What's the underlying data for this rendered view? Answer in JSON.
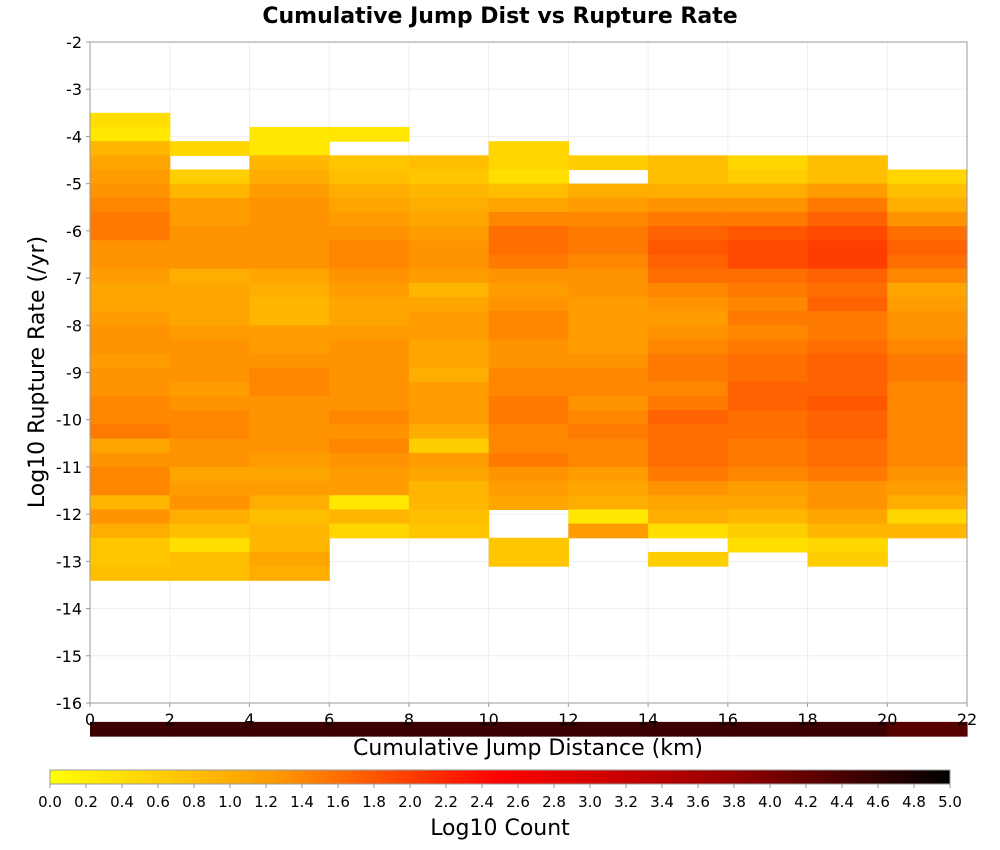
{
  "chart_data": {
    "type": "heatmap",
    "title": "Cumulative Jump Dist vs Rupture Rate",
    "xlabel": "Cumulative Jump Distance (km)",
    "ylabel": "Log10 Rupture Rate (/yr)",
    "colorbar_label": "Log10 Count",
    "xlim": [
      0,
      22
    ],
    "ylim": [
      -16,
      -2
    ],
    "x_ticks": [
      "0",
      "2",
      "4",
      "6",
      "8",
      "10",
      "12",
      "14",
      "16",
      "18",
      "20",
      "22"
    ],
    "y_ticks": [
      "-2",
      "-3",
      "-4",
      "-5",
      "-6",
      "-7",
      "-8",
      "-9",
      "-10",
      "-11",
      "-12",
      "-13",
      "-14",
      "-15",
      "-16"
    ],
    "colorbar_ticks": [
      "0.0",
      "0.2",
      "0.4",
      "0.6",
      "0.8",
      "1.0",
      "1.2",
      "1.4",
      "1.6",
      "1.8",
      "2.0",
      "2.2",
      "2.4",
      "2.6",
      "2.8",
      "3.0",
      "3.2",
      "3.4",
      "3.6",
      "3.8",
      "4.0",
      "4.2",
      "4.4",
      "4.6",
      "4.8",
      "5.0"
    ],
    "colorbar_range": [
      0,
      5
    ],
    "colormap": [
      "#ffff00",
      "#ff9900",
      "#ff0000",
      "#990000",
      "#000000"
    ],
    "grid": true,
    "x_bin_width": 2,
    "y_bin_height": 0.3,
    "y_bins_top": -3.5,
    "columns": [
      {
        "x": 0,
        "values": [
          0.4,
          0.3,
          0.9,
          1.1,
          1.2,
          1.3,
          1.4,
          1.5,
          1.5,
          1.3,
          1.3,
          1.2,
          1.1,
          1.1,
          1.2,
          1.3,
          1.3,
          1.2,
          1.3,
          1.3,
          1.4,
          1.4,
          1.5,
          1.1,
          1.3,
          1.4,
          1.4,
          0.9,
          1.3,
          1.0,
          0.7,
          0.7,
          0.8,
          null,
          null,
          null,
          null,
          null,
          null,
          null,
          null,
          null,
          null,
          4.5
        ]
      },
      {
        "x": 2,
        "values": [
          null,
          null,
          0.5,
          null,
          0.6,
          0.9,
          1.2,
          1.2,
          1.3,
          1.3,
          1.3,
          1.0,
          1.1,
          1.1,
          1.1,
          1.2,
          1.3,
          1.3,
          1.3,
          1.2,
          1.3,
          1.4,
          1.4,
          1.3,
          1.3,
          1.1,
          1.2,
          1.3,
          1.0,
          0.8,
          0.4,
          0.8,
          0.8,
          null,
          null,
          null,
          null,
          null,
          null,
          null,
          null,
          null,
          null,
          4.5
        ]
      },
      {
        "x": 4,
        "values": [
          null,
          0.3,
          0.3,
          0.9,
          1.0,
          1.2,
          1.3,
          1.3,
          1.3,
          1.3,
          1.3,
          1.1,
          1.0,
          0.9,
          0.9,
          1.2,
          1.2,
          1.3,
          1.4,
          1.4,
          1.3,
          1.3,
          1.3,
          1.3,
          1.2,
          1.1,
          1.2,
          1.0,
          0.8,
          0.9,
          0.9,
          1.1,
          1.0,
          null,
          null,
          null,
          null,
          null,
          null,
          null,
          null,
          null,
          null,
          4.5
        ]
      },
      {
        "x": 6,
        "values": [
          null,
          0.3,
          null,
          0.7,
          0.8,
          1.0,
          1.1,
          1.2,
          1.3,
          1.4,
          1.4,
          1.3,
          1.2,
          1.1,
          1.1,
          1.2,
          1.3,
          1.3,
          1.3,
          1.3,
          1.3,
          1.4,
          1.3,
          1.4,
          1.3,
          1.2,
          1.2,
          0.3,
          0.9,
          0.5,
          null,
          null,
          null,
          null,
          null,
          null,
          null,
          null,
          null,
          null,
          null,
          null,
          null,
          4.5
        ]
      },
      {
        "x": 8,
        "values": [
          null,
          null,
          null,
          0.8,
          0.7,
          0.9,
          1.0,
          1.1,
          1.2,
          1.3,
          1.3,
          1.2,
          0.9,
          1.1,
          1.2,
          1.2,
          1.1,
          1.1,
          1.0,
          1.2,
          1.2,
          1.2,
          1.0,
          0.6,
          1.2,
          1.1,
          0.9,
          0.9,
          0.8,
          0.7,
          null,
          null,
          null,
          null,
          null,
          null,
          null,
          null,
          null,
          null,
          null,
          null,
          null,
          4.5
        ]
      },
      {
        "x": 10,
        "values": [
          null,
          null,
          0.5,
          0.5,
          0.4,
          0.8,
          1.1,
          1.4,
          1.6,
          1.6,
          1.5,
          1.3,
          1.2,
          1.3,
          1.4,
          1.4,
          1.3,
          1.3,
          1.4,
          1.4,
          1.5,
          1.5,
          1.4,
          1.4,
          1.5,
          1.3,
          1.2,
          1.1,
          null,
          null,
          0.7,
          0.7,
          null,
          null,
          null,
          null,
          null,
          null,
          null,
          null,
          null,
          null,
          null,
          4.5
        ]
      },
      {
        "x": 12,
        "values": [
          null,
          null,
          null,
          0.6,
          null,
          1.0,
          1.2,
          1.4,
          1.5,
          1.5,
          1.4,
          1.3,
          1.3,
          1.2,
          1.2,
          1.2,
          1.2,
          1.3,
          1.4,
          1.4,
          1.3,
          1.4,
          1.5,
          1.4,
          1.4,
          1.2,
          1.1,
          1.0,
          0.3,
          1.2,
          null,
          null,
          null,
          null,
          null,
          null,
          null,
          null,
          null,
          null,
          null,
          null,
          null,
          4.5
        ]
      },
      {
        "x": 14,
        "values": [
          null,
          null,
          null,
          0.8,
          0.8,
          1.0,
          1.3,
          1.5,
          1.7,
          1.8,
          1.7,
          1.6,
          1.4,
          1.3,
          1.2,
          1.3,
          1.4,
          1.5,
          1.5,
          1.4,
          1.5,
          1.7,
          1.6,
          1.6,
          1.6,
          1.5,
          1.3,
          1.1,
          1.0,
          0.4,
          null,
          0.6,
          null,
          null,
          null,
          null,
          null,
          null,
          null,
          null,
          null,
          null,
          null,
          4.5
        ]
      },
      {
        "x": 16,
        "values": [
          null,
          null,
          null,
          0.5,
          0.6,
          1.0,
          1.3,
          1.5,
          1.8,
          1.9,
          1.9,
          1.6,
          1.5,
          1.4,
          1.5,
          1.4,
          1.5,
          1.6,
          1.6,
          1.7,
          1.7,
          1.6,
          1.6,
          1.5,
          1.5,
          1.4,
          1.2,
          1.1,
          0.9,
          0.6,
          0.4,
          null,
          null,
          null,
          null,
          null,
          null,
          null,
          null,
          null,
          null,
          null,
          null,
          4.5
        ]
      },
      {
        "x": 18,
        "values": [
          null,
          null,
          null,
          0.8,
          0.8,
          1.2,
          1.5,
          1.7,
          1.9,
          2.0,
          2.0,
          1.7,
          1.6,
          1.7,
          1.5,
          1.5,
          1.6,
          1.7,
          1.7,
          1.7,
          1.8,
          1.7,
          1.7,
          1.6,
          1.6,
          1.5,
          1.3,
          1.3,
          1.1,
          0.9,
          0.5,
          0.6,
          null,
          null,
          null,
          null,
          null,
          null,
          null,
          null,
          null,
          null,
          null,
          4.5
        ]
      },
      {
        "x": 20,
        "values": [
          null,
          null,
          null,
          null,
          0.5,
          0.8,
          1.0,
          1.3,
          1.6,
          1.7,
          1.6,
          1.4,
          1.1,
          1.2,
          1.3,
          1.3,
          1.4,
          1.5,
          1.5,
          1.4,
          1.4,
          1.4,
          1.4,
          1.4,
          1.4,
          1.3,
          1.2,
          1.0,
          0.5,
          0.9,
          null,
          null,
          null,
          null,
          null,
          null,
          null,
          null,
          null,
          null,
          null,
          null,
          null,
          4.3
        ]
      }
    ]
  }
}
